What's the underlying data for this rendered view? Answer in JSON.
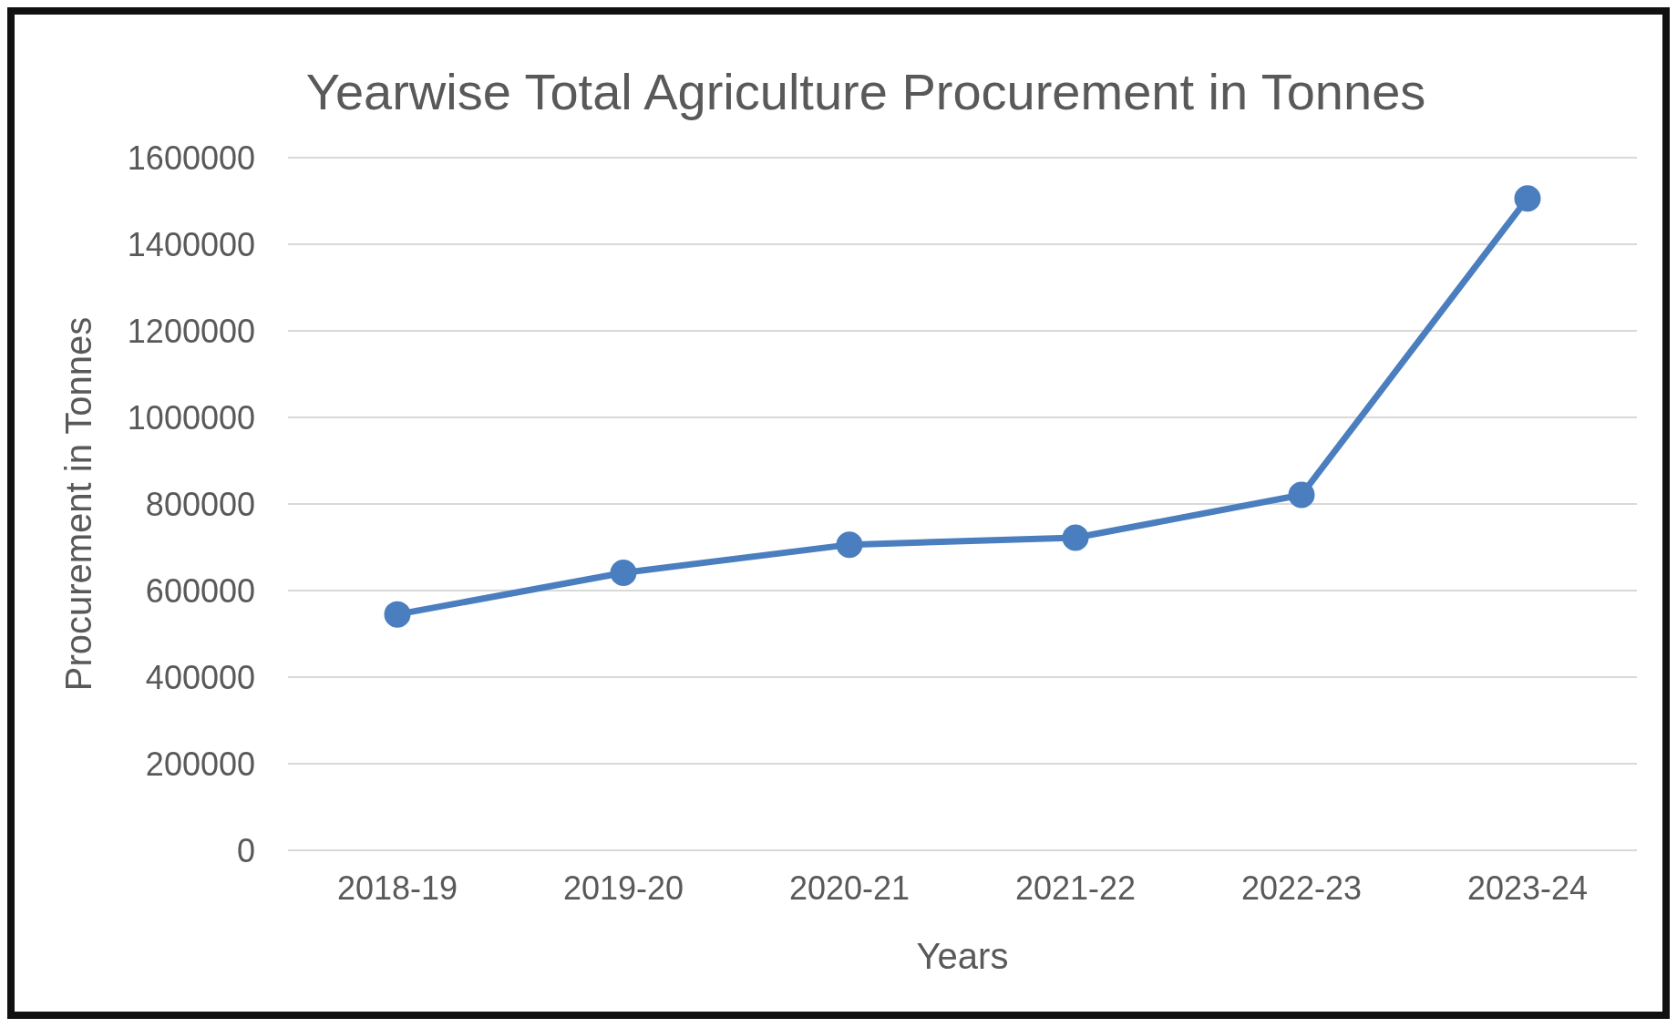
{
  "chart_data": {
    "type": "line",
    "title": "Yearwise Total Agriculture Procurement in Tonnes",
    "xlabel": "Years",
    "ylabel": "Procurement  in Tonnes",
    "categories": [
      "2018-19",
      "2019-20",
      "2020-21",
      "2021-22",
      "2022-23",
      "2023-24"
    ],
    "series": [
      {
        "color": "#4a7ebf",
        "values": [
          545000,
          641000,
          706000,
          722000,
          821000,
          1506000
        ]
      }
    ],
    "ylim": [
      0,
      1600000
    ],
    "yticks": [
      0,
      200000,
      400000,
      600000,
      800000,
      1000000,
      1200000,
      1400000,
      1600000
    ],
    "grid": "y",
    "marker": "circle"
  }
}
